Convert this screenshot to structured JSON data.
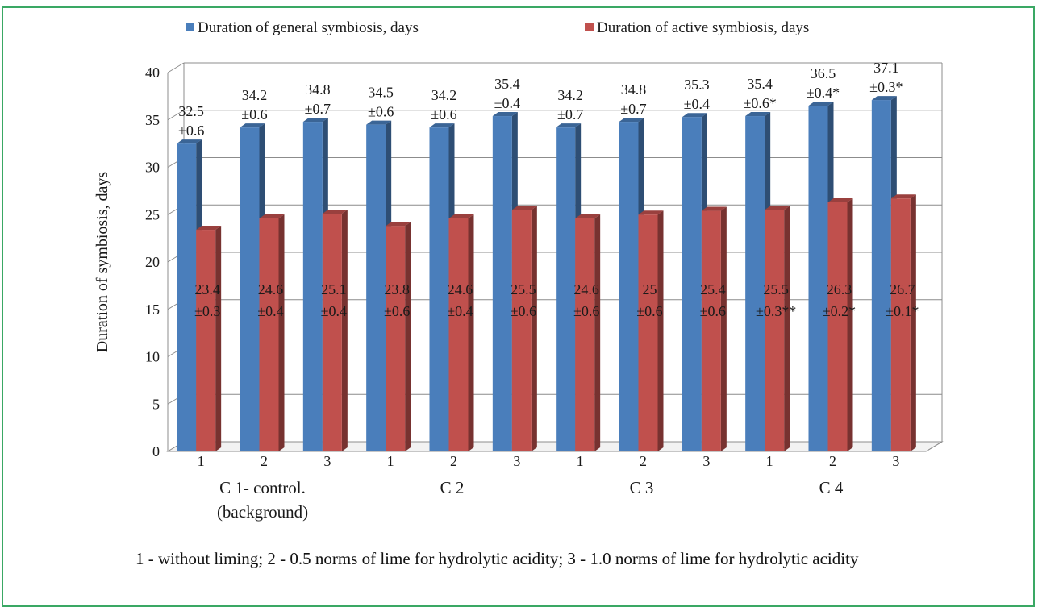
{
  "chart_data": {
    "type": "bar",
    "ylabel": "Duration of symbiosis, days",
    "ylim": [
      0,
      40
    ],
    "yticks": [
      0,
      5,
      10,
      15,
      20,
      25,
      30,
      35,
      40
    ],
    "categories": [
      "1",
      "2",
      "3",
      "1",
      "2",
      "3",
      "1",
      "2",
      "3",
      "1",
      "2",
      "3"
    ],
    "groups": [
      {
        "label_lines": [
          "C 1- control.",
          "(background)"
        ],
        "span": [
          0,
          2
        ]
      },
      {
        "label_lines": [
          "C 2"
        ],
        "span": [
          3,
          5
        ]
      },
      {
        "label_lines": [
          "C 3"
        ],
        "span": [
          6,
          8
        ]
      },
      {
        "label_lines": [
          "C 4"
        ],
        "span": [
          9,
          11
        ]
      }
    ],
    "series": [
      {
        "name": "Duration of general symbiosis, days",
        "color": "#4a7ebb",
        "values": [
          32.5,
          34.2,
          34.8,
          34.5,
          34.2,
          35.4,
          34.2,
          34.8,
          35.3,
          35.4,
          36.5,
          37.1
        ],
        "labels": [
          [
            "32.5",
            "±0.6"
          ],
          [
            "34.2",
            "±0.6"
          ],
          [
            "34.8",
            "±0.7"
          ],
          [
            "34.5",
            "±0.6"
          ],
          [
            "34.2",
            "±0.6"
          ],
          [
            "35.4",
            "±0.4"
          ],
          [
            "34.2",
            "±0.7"
          ],
          [
            "34.8",
            "±0.7"
          ],
          [
            "35.3",
            "±0.4"
          ],
          [
            "35.4",
            "±0.6*"
          ],
          [
            "36.5",
            "±0.4*"
          ],
          [
            "37.1",
            "±0.3*"
          ]
        ]
      },
      {
        "name": "Duration of active symbiosis, days",
        "color": "#c0504d",
        "values": [
          23.4,
          24.6,
          25.1,
          23.8,
          24.6,
          25.5,
          24.6,
          25,
          25.4,
          25.5,
          26.3,
          26.7
        ],
        "labels": [
          [
            "23.4",
            "±0.3"
          ],
          [
            "24.6",
            "±0.4"
          ],
          [
            "25.1",
            "±0.4"
          ],
          [
            "23.8",
            "±0.6"
          ],
          [
            "24.6",
            "±0.4"
          ],
          [
            "25.5",
            "±0.6"
          ],
          [
            "24.6",
            "±0.6"
          ],
          [
            "25",
            "±0.6"
          ],
          [
            "25.4",
            "±0.6"
          ],
          [
            "25.5",
            "±0.3**"
          ],
          [
            "26.3",
            "±0.2*"
          ],
          [
            "26.7",
            "±0.1*"
          ]
        ]
      }
    ],
    "legend_position": "top",
    "grid": true
  },
  "footnote": "1 - without liming; 2 - 0.5 norms of lime for hydrolytic acidity; 3 - 1.0 norms of lime for hydrolytic acidity"
}
